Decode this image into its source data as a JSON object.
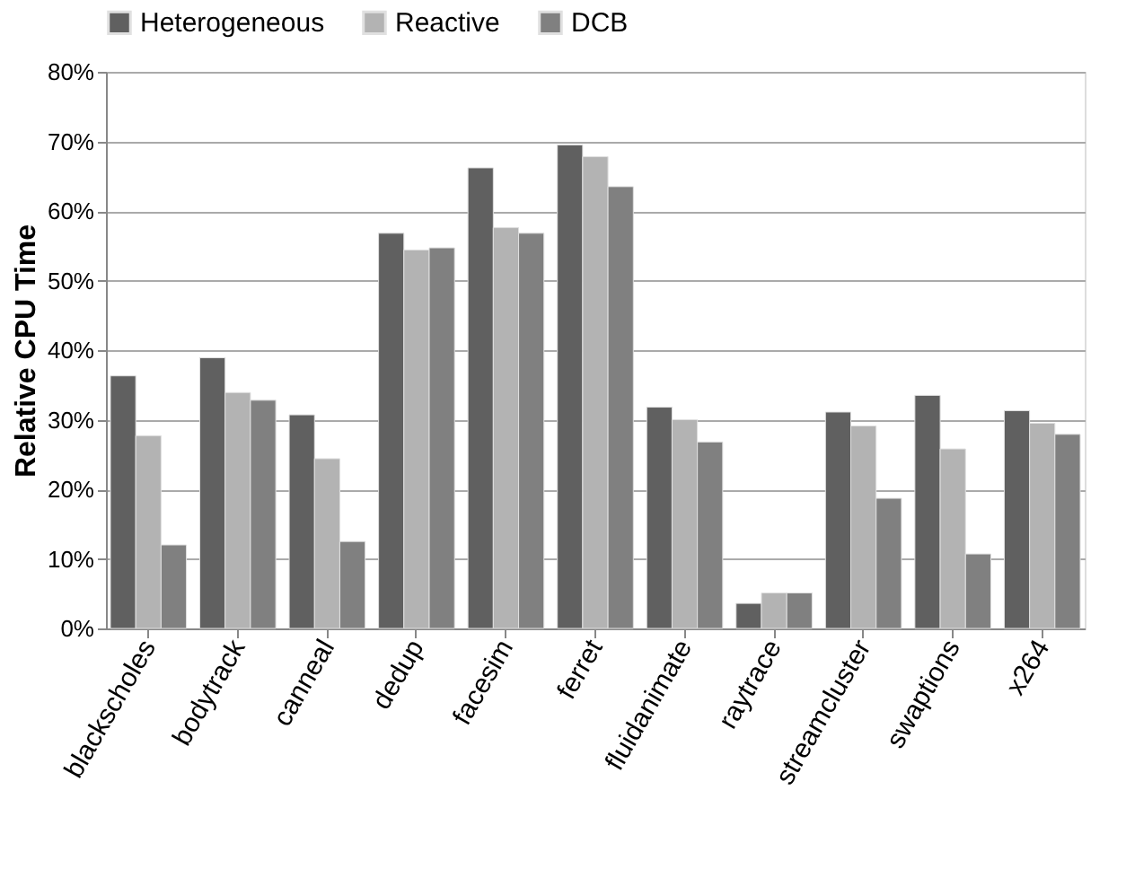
{
  "chart_data": {
    "type": "bar",
    "ylabel": "Relative CPU Time",
    "categories": [
      "blackscholes",
      "bodytrack",
      "canneal",
      "dedup",
      "facesim",
      "ferret",
      "fluidanimate",
      "raytrace",
      "streamcluster",
      "swaptions",
      "x264"
    ],
    "series": [
      {
        "name": "Heterogeneous",
        "color": "#606060",
        "values": [
          36.3,
          38.9,
          30.7,
          56.8,
          66.2,
          69.5,
          31.8,
          3.6,
          31.1,
          33.5,
          31.3
        ]
      },
      {
        "name": "Reactive",
        "color": "#b3b3b3",
        "values": [
          27.7,
          33.9,
          24.4,
          54.4,
          57.6,
          67.8,
          30.0,
          5.1,
          29.1,
          25.8,
          29.5
        ]
      },
      {
        "name": "DCB",
        "color": "#808080",
        "values": [
          12.0,
          32.8,
          12.5,
          54.7,
          56.8,
          63.5,
          26.8,
          5.1,
          18.7,
          10.7,
          27.9
        ]
      }
    ],
    "ylim": [
      0,
      80
    ],
    "yticks": [
      {
        "value": 0,
        "label": "0%"
      },
      {
        "value": 10,
        "label": "10%"
      },
      {
        "value": 20,
        "label": "20%"
      },
      {
        "value": 30,
        "label": "30%"
      },
      {
        "value": 40,
        "label": "40%"
      },
      {
        "value": 50,
        "label": "50%"
      },
      {
        "value": 60,
        "label": "60%"
      },
      {
        "value": 70,
        "label": "70%"
      },
      {
        "value": 80,
        "label": "80%"
      }
    ],
    "grid": "y",
    "legend": "top"
  }
}
